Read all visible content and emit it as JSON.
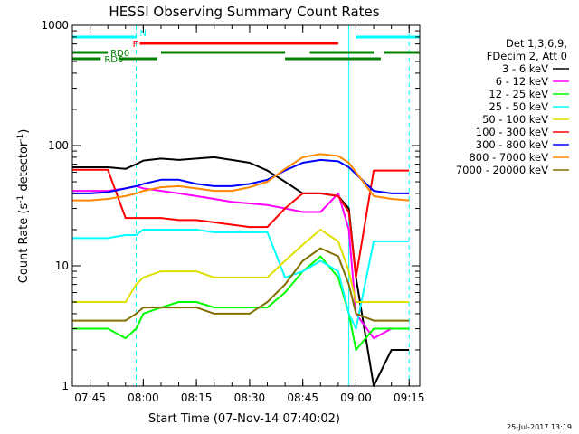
{
  "chart_data": {
    "type": "line",
    "title": "HESSI Observing Summary Count Rates",
    "xlabel": "Start Time (07-Nov-14 07:40:02)",
    "ylabel": "Count Rate (s⁻¹ detector⁻¹)",
    "ylabel_main": "Count Rate (s",
    "ylabel_sup1": "-1",
    "ylabel_mid": " detector",
    "ylabel_sup2": "-1",
    "ylabel_end": ")",
    "yscale": "log",
    "ylim": [
      1,
      1000
    ],
    "xlim": [
      "07:40",
      "09:18"
    ],
    "x_ticks": [
      "07:45",
      "08:00",
      "08:15",
      "08:30",
      "08:45",
      "09:00",
      "09:15"
    ],
    "y_ticks": [
      "1",
      "10",
      "100",
      "1000"
    ],
    "legend": {
      "placement": "right",
      "header": [
        "Det 1,3,6,9,",
        "FDecim 2, Att 0"
      ]
    },
    "timestamp": "25-Jul-2017 13:19",
    "x": [
      "07:40",
      "07:45",
      "07:50",
      "07:55",
      "07:58",
      "08:00",
      "08:05",
      "08:10",
      "08:15",
      "08:20",
      "08:25",
      "08:30",
      "08:35",
      "08:40",
      "08:45",
      "08:50",
      "08:55",
      "08:58",
      "09:00",
      "09:05",
      "09:10",
      "09:15"
    ],
    "series": [
      {
        "name": "3 - 6 keV",
        "color": "#000000",
        "values": [
          66,
          66,
          66,
          64,
          70,
          75,
          78,
          76,
          78,
          80,
          76,
          72,
          62,
          50,
          40,
          40,
          38,
          30,
          8,
          1,
          2,
          2
        ]
      },
      {
        "name": "6 - 12 keV",
        "color": "#ff00ff",
        "values": [
          42,
          42,
          42,
          44,
          46,
          44,
          42,
          40,
          38,
          36,
          34,
          33,
          32,
          30,
          28,
          28,
          40,
          20,
          4,
          2.5,
          3,
          3
        ]
      },
      {
        "name": "12 - 25 keV",
        "color": "#00ff00",
        "values": [
          3,
          3,
          3,
          2.5,
          3,
          4,
          4.5,
          5,
          5,
          4.5,
          4.5,
          4.5,
          4.5,
          6,
          9,
          12,
          8,
          4,
          2,
          3,
          3,
          3
        ]
      },
      {
        "name": "25 - 50 keV",
        "color": "#00ffff",
        "values": [
          17,
          17,
          17,
          18,
          18,
          20,
          20,
          20,
          20,
          19,
          19,
          19,
          19,
          8,
          9,
          11,
          9,
          4,
          3,
          16,
          16,
          16
        ]
      },
      {
        "name": "50 - 100 keV",
        "color": "#e0e000",
        "values": [
          5,
          5,
          5,
          5,
          7,
          8,
          9,
          9,
          9,
          8,
          8,
          8,
          8,
          11,
          15,
          20,
          16,
          9,
          5,
          5,
          5,
          5
        ]
      },
      {
        "name": "100 - 300 keV",
        "color": "#ff0000",
        "values": [
          63,
          63,
          63,
          25,
          25,
          25,
          25,
          24,
          24,
          23,
          22,
          21,
          21,
          30,
          40,
          40,
          38,
          28,
          8,
          62,
          62,
          62
        ]
      },
      {
        "name": "300 - 800 keV",
        "color": "#0000ff",
        "values": [
          40,
          40,
          41,
          44,
          46,
          48,
          52,
          52,
          48,
          46,
          46,
          48,
          52,
          62,
          72,
          76,
          74,
          66,
          58,
          42,
          40,
          40
        ]
      },
      {
        "name": "800 - 7000 keV",
        "color": "#ff8800",
        "values": [
          35,
          35,
          36,
          38,
          40,
          42,
          45,
          46,
          44,
          42,
          42,
          45,
          50,
          64,
          80,
          85,
          82,
          72,
          60,
          38,
          36,
          35
        ]
      },
      {
        "name": "7000 - 20000 keV",
        "color": "#807000",
        "values": [
          3.5,
          3.5,
          3.5,
          3.5,
          4,
          4.5,
          4.5,
          4.5,
          4.5,
          4,
          4,
          4,
          5,
          7,
          11,
          14,
          12,
          7,
          4,
          3.5,
          3.5,
          3.5
        ]
      }
    ],
    "flag_bars": [
      {
        "label": "N",
        "color": "#00ffff",
        "segments": [
          [
            "07:40",
            "07:58"
          ],
          [
            "09:00",
            "09:18"
          ]
        ]
      },
      {
        "label": "F",
        "color": "#ff0000",
        "segments": [
          [
            "07:59",
            "08:55"
          ]
        ]
      },
      {
        "label": "RD0",
        "color": "#008000",
        "segments": [
          [
            "07:40",
            "07:50"
          ],
          [
            "08:05",
            "08:40"
          ],
          [
            "08:47",
            "09:05"
          ],
          [
            "09:08",
            "09:18"
          ]
        ]
      },
      {
        "label": "RD6",
        "color": "#008000",
        "segments": [
          [
            "07:40",
            "07:48"
          ],
          [
            "07:53",
            "08:04"
          ],
          [
            "08:40",
            "09:07"
          ]
        ]
      }
    ],
    "vertical_markers": [
      {
        "x": "07:58",
        "color": "#00ffff",
        "style": "dashed"
      },
      {
        "x": "09:15",
        "color": "#00ffff",
        "style": "dashed"
      },
      {
        "x": "08:58",
        "color": "#00ffff",
        "style": "solid"
      }
    ]
  }
}
